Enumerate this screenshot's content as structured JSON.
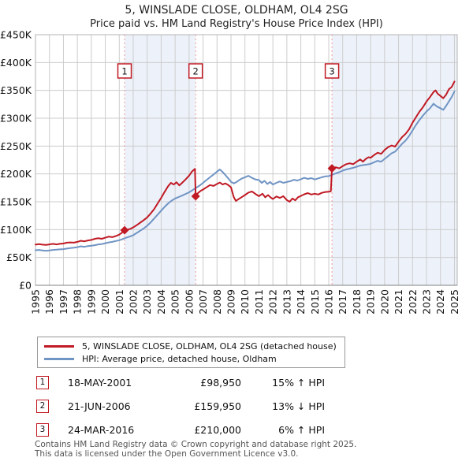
{
  "header": {
    "title": "5, WINSLADE CLOSE, OLDHAM, OL4 2SG",
    "subtitle": "Price paid vs. HM Land Registry's House Price Index (HPI)"
  },
  "chart_data": {
    "type": "line",
    "x_domain": [
      1995,
      2025.2
    ],
    "y_range": [
      0,
      450000
    ],
    "grid": true,
    "y_ticks": [
      [
        450000,
        "£450K"
      ],
      [
        400000,
        "£400K"
      ],
      [
        350000,
        "£350K"
      ],
      [
        300000,
        "£300K"
      ],
      [
        250000,
        "£250K"
      ],
      [
        200000,
        "£200K"
      ],
      [
        150000,
        "£150K"
      ],
      [
        100000,
        "£100K"
      ],
      [
        50000,
        "£50K"
      ],
      [
        0,
        "£0"
      ]
    ],
    "x_ticks": [
      1995,
      1996,
      1997,
      1998,
      1999,
      2000,
      2001,
      2002,
      2003,
      2004,
      2005,
      2006,
      2007,
      2008,
      2009,
      2010,
      2011,
      2012,
      2013,
      2014,
      2015,
      2016,
      2017,
      2018,
      2019,
      2020,
      2021,
      2022,
      2023,
      2024,
      2025
    ],
    "colors": {
      "property_line": "#c01a24",
      "hpi_line": "#7094c4",
      "sale_dash": "#ef9a9a",
      "owned_band": "#edf2fa",
      "grid_line": "#cccccc",
      "plot_border": "#b3b3b3",
      "axis_line": "#808080"
    },
    "owned_bands": [
      [
        2001.38,
        2006.47
      ],
      [
        2016.23,
        2025.2
      ]
    ],
    "sales": [
      {
        "label": "1",
        "x": 2001.38,
        "price": 98950
      },
      {
        "label": "2",
        "x": 2006.47,
        "price": 159950
      },
      {
        "label": "3",
        "x": 2016.23,
        "price": 210000
      }
    ],
    "series": [
      {
        "name": "5, WINSLADE CLOSE, OLDHAM, OL4 2SG (detached house)",
        "color": "#c01a24",
        "points": [
          [
            1995.0,
            73000
          ],
          [
            1995.25,
            74000
          ],
          [
            1995.5,
            73000
          ],
          [
            1995.75,
            72500
          ],
          [
            1996.0,
            73500
          ],
          [
            1996.25,
            74500
          ],
          [
            1996.5,
            73500
          ],
          [
            1996.75,
            74500
          ],
          [
            1997.0,
            75000
          ],
          [
            1997.25,
            76500
          ],
          [
            1997.5,
            77000
          ],
          [
            1997.75,
            76500
          ],
          [
            1998.0,
            78000
          ],
          [
            1998.25,
            80000
          ],
          [
            1998.5,
            79000
          ],
          [
            1998.75,
            80500
          ],
          [
            1999.0,
            81500
          ],
          [
            1999.25,
            83500
          ],
          [
            1999.5,
            84500
          ],
          [
            1999.75,
            83500
          ],
          [
            2000.0,
            85500
          ],
          [
            2000.25,
            87500
          ],
          [
            2000.5,
            86500
          ],
          [
            2000.75,
            88500
          ],
          [
            2001.0,
            91000
          ],
          [
            2001.2,
            94500
          ],
          [
            2001.38,
            98950
          ],
          [
            2001.6,
            100000
          ],
          [
            2001.8,
            101500
          ],
          [
            2002.0,
            104000
          ],
          [
            2002.25,
            108000
          ],
          [
            2002.5,
            112500
          ],
          [
            2002.75,
            117000
          ],
          [
            2003.0,
            122000
          ],
          [
            2003.25,
            129000
          ],
          [
            2003.5,
            137000
          ],
          [
            2003.75,
            147000
          ],
          [
            2004.0,
            157000
          ],
          [
            2004.25,
            168000
          ],
          [
            2004.5,
            178000
          ],
          [
            2004.7,
            184000
          ],
          [
            2004.9,
            181000
          ],
          [
            2005.1,
            185000
          ],
          [
            2005.3,
            179500
          ],
          [
            2005.5,
            184000
          ],
          [
            2005.75,
            190000
          ],
          [
            2006.0,
            197000
          ],
          [
            2006.2,
            204000
          ],
          [
            2006.42,
            209000
          ],
          [
            2006.47,
            159950
          ],
          [
            2006.65,
            166000
          ],
          [
            2006.85,
            170000
          ],
          [
            2007.0,
            172000
          ],
          [
            2007.25,
            176000
          ],
          [
            2007.5,
            180000
          ],
          [
            2007.75,
            178500
          ],
          [
            2008.0,
            182000
          ],
          [
            2008.2,
            184500
          ],
          [
            2008.4,
            181000
          ],
          [
            2008.6,
            183000
          ],
          [
            2008.8,
            180000
          ],
          [
            2009.0,
            176000
          ],
          [
            2009.2,
            158000
          ],
          [
            2009.35,
            151500
          ],
          [
            2009.55,
            155000
          ],
          [
            2009.75,
            158000
          ],
          [
            2010.0,
            162000
          ],
          [
            2010.25,
            166500
          ],
          [
            2010.5,
            168500
          ],
          [
            2010.75,
            164000
          ],
          [
            2011.0,
            160000
          ],
          [
            2011.25,
            164500
          ],
          [
            2011.45,
            158000
          ],
          [
            2011.65,
            162000
          ],
          [
            2011.85,
            157500
          ],
          [
            2012.0,
            155000
          ],
          [
            2012.25,
            159500
          ],
          [
            2012.5,
            157000
          ],
          [
            2012.75,
            160000
          ],
          [
            2013.0,
            153000
          ],
          [
            2013.2,
            150000
          ],
          [
            2013.4,
            156000
          ],
          [
            2013.6,
            152500
          ],
          [
            2013.8,
            158000
          ],
          [
            2014.0,
            160500
          ],
          [
            2014.25,
            163500
          ],
          [
            2014.5,
            165500
          ],
          [
            2014.75,
            163000
          ],
          [
            2015.0,
            164500
          ],
          [
            2015.25,
            163000
          ],
          [
            2015.5,
            166000
          ],
          [
            2015.75,
            167500
          ],
          [
            2016.0,
            168000
          ],
          [
            2016.15,
            169000
          ],
          [
            2016.23,
            210000
          ],
          [
            2016.5,
            212000
          ],
          [
            2016.75,
            210000
          ],
          [
            2017.0,
            214000
          ],
          [
            2017.25,
            217500
          ],
          [
            2017.5,
            219000
          ],
          [
            2017.75,
            217500
          ],
          [
            2018.0,
            222000
          ],
          [
            2018.25,
            226000
          ],
          [
            2018.45,
            222000
          ],
          [
            2018.65,
            227000
          ],
          [
            2018.85,
            230000
          ],
          [
            2019.0,
            229000
          ],
          [
            2019.25,
            234000
          ],
          [
            2019.5,
            238000
          ],
          [
            2019.75,
            236000
          ],
          [
            2020.0,
            243000
          ],
          [
            2020.25,
            248000
          ],
          [
            2020.5,
            251000
          ],
          [
            2020.75,
            249000
          ],
          [
            2021.0,
            258000
          ],
          [
            2021.25,
            266000
          ],
          [
            2021.5,
            272000
          ],
          [
            2021.75,
            280000
          ],
          [
            2022.0,
            292000
          ],
          [
            2022.25,
            302000
          ],
          [
            2022.5,
            312000
          ],
          [
            2022.75,
            320000
          ],
          [
            2023.0,
            330000
          ],
          [
            2023.25,
            338000
          ],
          [
            2023.5,
            347000
          ],
          [
            2023.65,
            350000
          ],
          [
            2023.8,
            344000
          ],
          [
            2024.0,
            340000
          ],
          [
            2024.2,
            336000
          ],
          [
            2024.4,
            342000
          ],
          [
            2024.6,
            352000
          ],
          [
            2024.8,
            356000
          ],
          [
            2025.0,
            366000
          ]
        ]
      },
      {
        "name": "HPI: Average price, detached house, Oldham",
        "color": "#7094c4",
        "points": [
          [
            1995.0,
            63000
          ],
          [
            1995.25,
            63500
          ],
          [
            1995.5,
            62500
          ],
          [
            1995.75,
            62000
          ],
          [
            1996.0,
            62500
          ],
          [
            1996.25,
            63500
          ],
          [
            1996.5,
            64000
          ],
          [
            1996.75,
            64500
          ],
          [
            1997.0,
            65000
          ],
          [
            1997.25,
            66000
          ],
          [
            1997.5,
            67000
          ],
          [
            1997.75,
            67500
          ],
          [
            1998.0,
            68500
          ],
          [
            1998.25,
            70000
          ],
          [
            1998.5,
            69000
          ],
          [
            1998.75,
            70500
          ],
          [
            1999.0,
            71000
          ],
          [
            1999.25,
            72000
          ],
          [
            1999.5,
            73500
          ],
          [
            1999.75,
            74000
          ],
          [
            2000.0,
            75500
          ],
          [
            2000.25,
            77000
          ],
          [
            2000.5,
            78000
          ],
          [
            2000.75,
            79500
          ],
          [
            2001.0,
            81000
          ],
          [
            2001.25,
            83000
          ],
          [
            2001.5,
            85500
          ],
          [
            2001.75,
            87500
          ],
          [
            2002.0,
            90000
          ],
          [
            2002.25,
            94000
          ],
          [
            2002.5,
            98000
          ],
          [
            2002.75,
            102000
          ],
          [
            2003.0,
            107000
          ],
          [
            2003.25,
            113000
          ],
          [
            2003.5,
            120000
          ],
          [
            2003.75,
            127000
          ],
          [
            2004.0,
            134000
          ],
          [
            2004.25,
            141000
          ],
          [
            2004.5,
            147000
          ],
          [
            2004.75,
            152000
          ],
          [
            2005.0,
            156000
          ],
          [
            2005.25,
            158500
          ],
          [
            2005.5,
            161000
          ],
          [
            2005.75,
            164000
          ],
          [
            2006.0,
            167000
          ],
          [
            2006.25,
            171000
          ],
          [
            2006.5,
            175000
          ],
          [
            2006.75,
            179000
          ],
          [
            2007.0,
            184000
          ],
          [
            2007.25,
            189000
          ],
          [
            2007.5,
            194000
          ],
          [
            2007.75,
            199000
          ],
          [
            2008.0,
            204000
          ],
          [
            2008.2,
            208000
          ],
          [
            2008.4,
            203500
          ],
          [
            2008.6,
            198000
          ],
          [
            2008.8,
            192000
          ],
          [
            2009.0,
            186000
          ],
          [
            2009.2,
            183000
          ],
          [
            2009.4,
            185500
          ],
          [
            2009.6,
            189000
          ],
          [
            2009.8,
            192000
          ],
          [
            2010.0,
            194000
          ],
          [
            2010.25,
            196500
          ],
          [
            2010.5,
            193000
          ],
          [
            2010.75,
            190000
          ],
          [
            2011.0,
            189000
          ],
          [
            2011.2,
            184000
          ],
          [
            2011.4,
            187500
          ],
          [
            2011.6,
            182000
          ],
          [
            2011.8,
            185500
          ],
          [
            2012.0,
            181000
          ],
          [
            2012.25,
            184000
          ],
          [
            2012.5,
            186500
          ],
          [
            2012.75,
            184000
          ],
          [
            2013.0,
            185500
          ],
          [
            2013.25,
            187000
          ],
          [
            2013.5,
            189500
          ],
          [
            2013.75,
            188000
          ],
          [
            2014.0,
            190500
          ],
          [
            2014.25,
            193000
          ],
          [
            2014.5,
            191000
          ],
          [
            2014.75,
            192500
          ],
          [
            2015.0,
            190000
          ],
          [
            2015.25,
            192000
          ],
          [
            2015.5,
            194000
          ],
          [
            2015.75,
            195500
          ],
          [
            2016.0,
            196000
          ],
          [
            2016.25,
            198500
          ],
          [
            2016.5,
            201000
          ],
          [
            2016.75,
            203000
          ],
          [
            2017.0,
            206000
          ],
          [
            2017.25,
            208000
          ],
          [
            2017.5,
            209500
          ],
          [
            2017.75,
            211000
          ],
          [
            2018.0,
            213000
          ],
          [
            2018.25,
            215000
          ],
          [
            2018.5,
            216000
          ],
          [
            2018.75,
            217000
          ],
          [
            2019.0,
            218000
          ],
          [
            2019.25,
            221000
          ],
          [
            2019.5,
            223500
          ],
          [
            2019.75,
            222000
          ],
          [
            2020.0,
            227000
          ],
          [
            2020.25,
            232000
          ],
          [
            2020.5,
            237000
          ],
          [
            2020.75,
            240000
          ],
          [
            2021.0,
            247000
          ],
          [
            2021.25,
            254000
          ],
          [
            2021.5,
            260000
          ],
          [
            2021.75,
            268000
          ],
          [
            2022.0,
            278000
          ],
          [
            2022.25,
            288000
          ],
          [
            2022.5,
            297000
          ],
          [
            2022.75,
            305000
          ],
          [
            2023.0,
            312000
          ],
          [
            2023.25,
            318000
          ],
          [
            2023.5,
            326000
          ],
          [
            2023.75,
            321000
          ],
          [
            2024.0,
            318000
          ],
          [
            2024.2,
            315000
          ],
          [
            2024.4,
            322000
          ],
          [
            2024.6,
            330000
          ],
          [
            2024.8,
            338000
          ],
          [
            2025.0,
            348000
          ]
        ]
      }
    ]
  },
  "legend": {
    "series": [
      {
        "label": "5, WINSLADE CLOSE, OLDHAM, OL4 2SG (detached house)"
      },
      {
        "label": "HPI: Average price, detached house, Oldham"
      }
    ]
  },
  "sales_table": {
    "rows": [
      {
        "num": "1",
        "date": "18-MAY-2001",
        "price": "£98,950",
        "vs_hpi": "15% ↑ HPI"
      },
      {
        "num": "2",
        "date": "21-JUN-2006",
        "price": "£159,950",
        "vs_hpi": "13% ↓ HPI"
      },
      {
        "num": "3",
        "date": "24-MAR-2016",
        "price": "£210,000",
        "vs_hpi": "6% ↑ HPI"
      }
    ]
  },
  "footer": {
    "line1": "Contains HM Land Registry data © Crown copyright and database right 2025.",
    "line2": "This data is licensed under the Open Government Licence v3.0."
  }
}
